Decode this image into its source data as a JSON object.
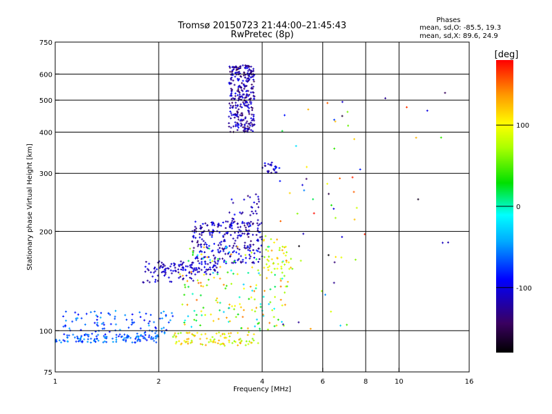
{
  "chart_data": {
    "type": "scatter",
    "title": "Tromsø 20150723 21:44:00–21:45:43",
    "subtitle": "RwPretec (8p)",
    "xlabel": "Frequency [MHz]",
    "ylabel": "Stationary phase Virtual Height [km]",
    "x_scale": "log",
    "y_scale": "log",
    "xlim": [
      1,
      16
    ],
    "ylim": [
      75,
      750
    ],
    "xticks": [
      1,
      2,
      4,
      6,
      8,
      10,
      16
    ],
    "yticks": [
      75,
      100,
      200,
      300,
      400,
      500,
      600,
      750
    ],
    "grid_x": [
      2,
      4,
      6,
      8,
      10
    ],
    "grid_y": [
      100,
      200,
      300,
      400,
      500,
      600
    ],
    "phases": {
      "heading": "Phases",
      "line_o": "mean, sd,O: -85.5, 19.3",
      "line_x": "mean, sd,X:  89.6, 24.9"
    },
    "colorbar": {
      "label": "[deg]",
      "range": [
        -180,
        180
      ],
      "ticks": [
        100,
        0,
        -100
      ]
    },
    "clusters": [
      {
        "x_range": [
          1.0,
          2.0
        ],
        "y_range": [
          92,
          98
        ],
        "count": 130,
        "phase_range": [
          -90,
          -40
        ]
      },
      {
        "x_range": [
          1.05,
          2.2
        ],
        "y_range": [
          98,
          115
        ],
        "count": 90,
        "phase_range": [
          -100,
          -40
        ]
      },
      {
        "x_range": [
          1.8,
          2.6
        ],
        "y_range": [
          140,
          165
        ],
        "count": 60,
        "phase_range": [
          -130,
          -90
        ]
      },
      {
        "x_range": [
          2.0,
          3.0
        ],
        "y_range": [
          148,
          160
        ],
        "count": 70,
        "phase_range": [
          -130,
          -90
        ]
      },
      {
        "x_range": [
          2.5,
          4.0
        ],
        "y_range": [
          160,
          215
        ],
        "count": 260,
        "phase_range": [
          -140,
          -80
        ]
      },
      {
        "x_range": [
          3.2,
          4.0
        ],
        "y_range": [
          200,
          260
        ],
        "count": 40,
        "phase_range": [
          -140,
          -90
        ]
      },
      {
        "x_range": [
          3.2,
          3.8
        ],
        "y_range": [
          400,
          640
        ],
        "count": 320,
        "phase_range": [
          -150,
          -90
        ]
      },
      {
        "x_range": [
          4.0,
          4.5
        ],
        "y_range": [
          300,
          325
        ],
        "count": 25,
        "phase_range": [
          -140,
          -80
        ]
      },
      {
        "x_range": [
          2.2,
          3.9
        ],
        "y_range": [
          90,
          99
        ],
        "count": 90,
        "phase_range": [
          60,
          140
        ]
      },
      {
        "x_range": [
          2.3,
          4.8
        ],
        "y_range": [
          100,
          180
        ],
        "count": 170,
        "phase_range": [
          -40,
          150
        ]
      },
      {
        "x_range": [
          4.0,
          4.9
        ],
        "y_range": [
          150,
          195
        ],
        "count": 40,
        "phase_range": [
          60,
          140
        ]
      },
      {
        "x_range": [
          4.5,
          7.6
        ],
        "y_range": [
          100,
          500
        ],
        "count": 45,
        "phase_range": [
          -180,
          180
        ]
      },
      {
        "x_range": [
          4.5,
          15.0
        ],
        "y_range": [
          180,
          580
        ],
        "count": 18,
        "phase_range": [
          -180,
          180
        ]
      }
    ]
  }
}
